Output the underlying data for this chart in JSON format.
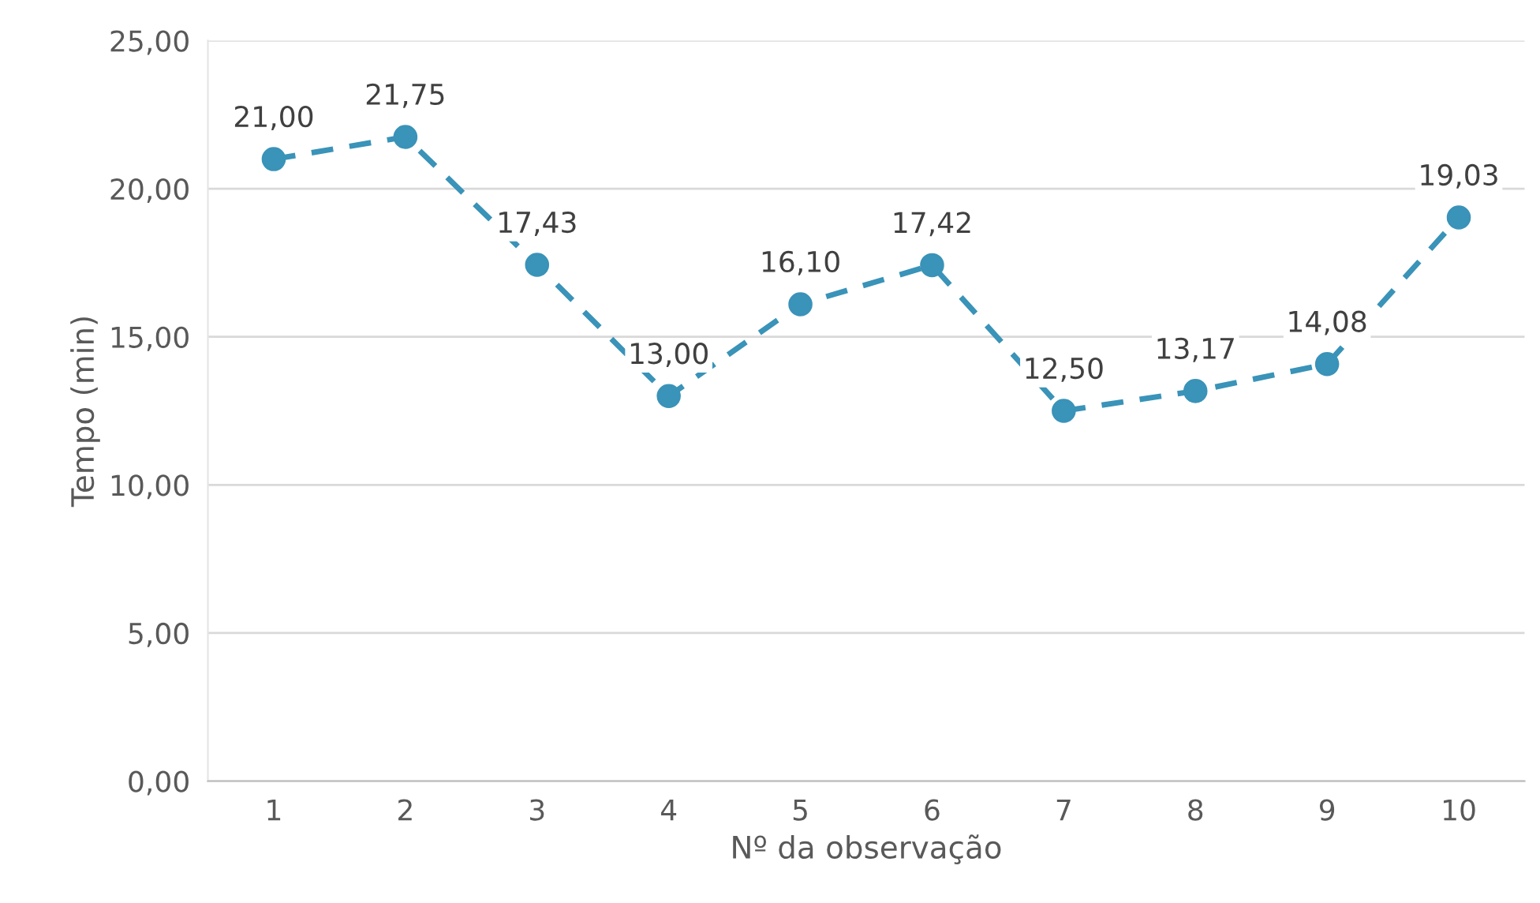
{
  "chart_data": {
    "type": "line",
    "xlabel": "Nº da observação",
    "ylabel": "Tempo (min)",
    "categories": [
      "1",
      "2",
      "3",
      "4",
      "5",
      "6",
      "7",
      "8",
      "9",
      "10"
    ],
    "series": [
      {
        "color": "#3a93b8",
        "values": [
          21.0,
          21.75,
          17.43,
          13.0,
          16.1,
          17.42,
          12.5,
          13.17,
          14.08,
          19.03
        ],
        "value_labels": [
          "21,00",
          "21,75",
          "17,43",
          "13,00",
          "16,10",
          "17,42",
          "12,50",
          "13,17",
          "14,08",
          "19,03"
        ]
      }
    ],
    "ylim": [
      0,
      25
    ],
    "yticks": [
      {
        "value": 0,
        "label": "0,00"
      },
      {
        "value": 5,
        "label": "5,00"
      },
      {
        "value": 10,
        "label": "10,00"
      },
      {
        "value": 15,
        "label": "15,00"
      },
      {
        "value": 20,
        "label": "20,00"
      },
      {
        "value": 25,
        "label": "25,00"
      }
    ],
    "grid": "y",
    "marker": "circle",
    "line_style": "dashed",
    "legend": false
  }
}
